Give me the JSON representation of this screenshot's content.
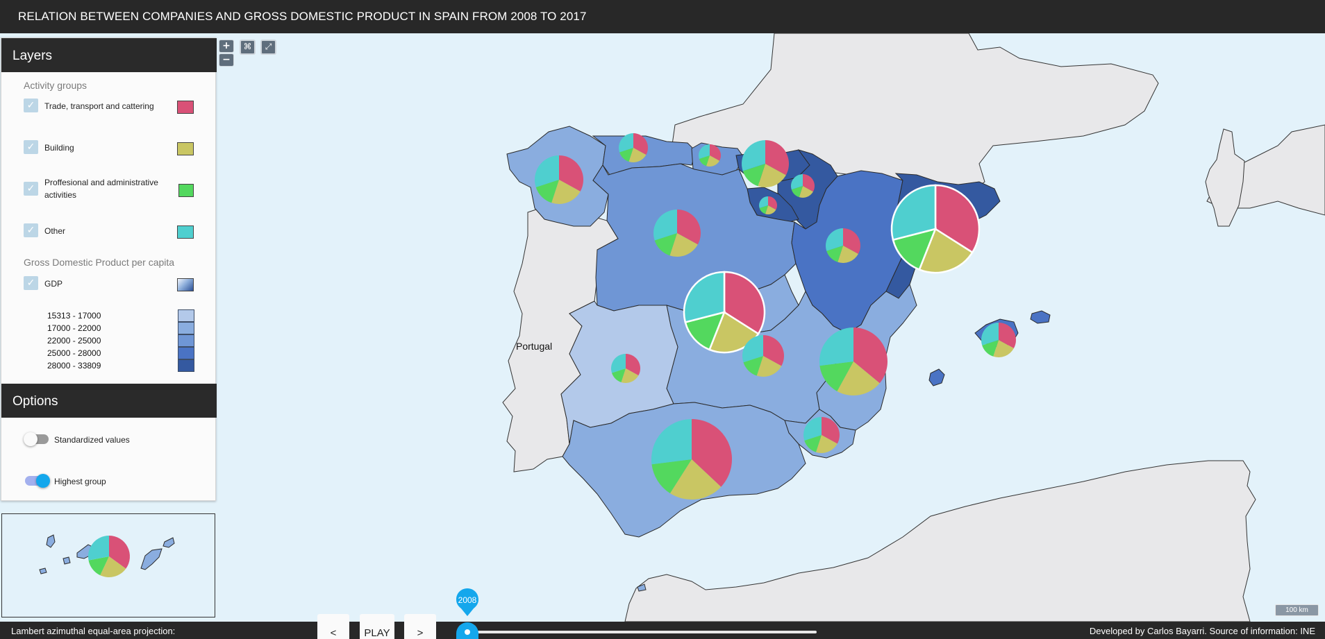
{
  "header": {
    "title": "RELATION BETWEEN COMPANIES AND GROSS DOMESTIC PRODUCT IN SPAIN FROM 2008 TO 2017"
  },
  "map_controls": {
    "zoom_in": "+",
    "zoom_out": "−",
    "reset_icon": "reset-extent-icon",
    "fullscreen_icon": "fullscreen-icon"
  },
  "map": {
    "country_label": "Portugal"
  },
  "layers": {
    "title": "Layers",
    "activity_groups_title": "Activity groups",
    "activity_groups": [
      {
        "label": "Trade, transport and cattering",
        "color": "#d95177",
        "checked": true
      },
      {
        "label": "Building",
        "color": "#c9c663",
        "checked": true
      },
      {
        "label": "Proffesional and administrative activities",
        "color": "#53d85e",
        "checked": true
      },
      {
        "label": "Other",
        "color": "#4fcfcf",
        "checked": true
      }
    ],
    "gdp_title": "Gross Domestic Product per capita",
    "gdp_label": "GDP",
    "gdp_ranges": [
      {
        "label": "15313 - 17000",
        "color": "#b3c9ea"
      },
      {
        "label": "17000 - 22000",
        "color": "#8aaddf"
      },
      {
        "label": "22000 - 25000",
        "color": "#6f96d5"
      },
      {
        "label": "25000 - 28000",
        "color": "#4a73c4"
      },
      {
        "label": "28000 - 33809",
        "color": "#3459a0"
      }
    ]
  },
  "options": {
    "title": "Options",
    "standardized_label": "Standardized values",
    "standardized_on": false,
    "highest_label": "Highest group",
    "highest_on": true
  },
  "footer": {
    "projection": "Lambert azimuthal equal-area projection:",
    "prev": "<",
    "play": "PLAY",
    "next": ">",
    "year": "2008",
    "credits": "Developed by Carlos Bayarri. Source of information: INE"
  },
  "scale_bar": "100 km"
}
